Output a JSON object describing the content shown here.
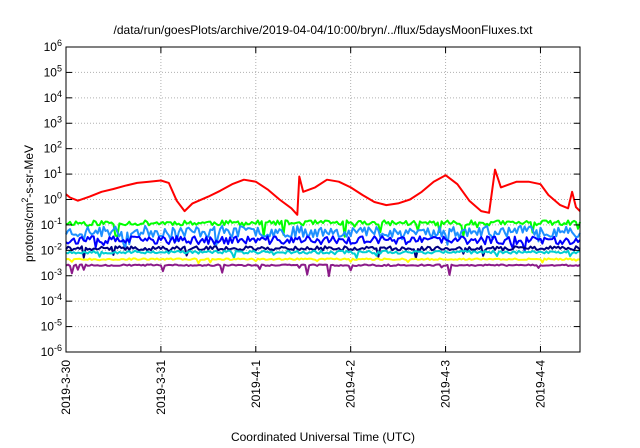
{
  "chart_data": {
    "type": "line",
    "title": "/data/run/goesPlots/archive/2019-04-04/10:00/bryn/../flux/5daysMoonFluxes.txt",
    "xlabel": "Coordinated Universal Time (UTC)",
    "ylabel": {
      "pre": "protons/cm",
      "sup": "2",
      "post": "-s-sr-MeV"
    },
    "yscale": "log",
    "ylim_exp": [
      -6,
      6
    ],
    "ytick_exponents": [
      -6,
      -5,
      -4,
      -3,
      -2,
      -1,
      0,
      1,
      2,
      3,
      4,
      5,
      6
    ],
    "xlim": [
      "2019-03-30",
      "2019-04-04T10:00"
    ],
    "xticks": [
      {
        "label": "2019-3-30",
        "t": "2019-03-30"
      },
      {
        "label": "2019-3-31",
        "t": "2019-03-31"
      },
      {
        "label": "2019-4-1",
        "t": "2019-04-01"
      },
      {
        "label": "2019-4-2",
        "t": "2019-04-02"
      },
      {
        "label": "2019-4-3",
        "t": "2019-04-03"
      },
      {
        "label": "2019-4-4",
        "t": "2019-04-04"
      }
    ],
    "grid": true,
    "series": [
      {
        "color": "#ff0000",
        "style": "smooth",
        "points": [
          [
            "2019-03-30T00:00",
            1.6
          ],
          [
            "2019-03-30T01:00",
            1.2
          ],
          [
            "2019-03-30T03:00",
            0.9
          ],
          [
            "2019-03-30T06:00",
            1.3
          ],
          [
            "2019-03-30T09:00",
            2.0
          ],
          [
            "2019-03-30T12:00",
            2.6
          ],
          [
            "2019-03-30T15:00",
            3.5
          ],
          [
            "2019-03-30T18:00",
            4.5
          ],
          [
            "2019-03-30T21:00",
            5.0
          ],
          [
            "2019-03-31T00:00",
            5.6
          ],
          [
            "2019-03-31T02:00",
            4.5
          ],
          [
            "2019-03-31T04:00",
            0.9
          ],
          [
            "2019-03-31T06:00",
            0.35
          ],
          [
            "2019-03-31T08:00",
            0.7
          ],
          [
            "2019-03-31T12:00",
            1.3
          ],
          [
            "2019-03-31T15:00",
            2.2
          ],
          [
            "2019-03-31T18:00",
            4.0
          ],
          [
            "2019-03-31T21:00",
            6.0
          ],
          [
            "2019-04-01T00:00",
            5.0
          ],
          [
            "2019-04-01T03:00",
            2.5
          ],
          [
            "2019-04-01T06:00",
            1.0
          ],
          [
            "2019-04-01T09:00",
            0.45
          ],
          [
            "2019-04-01T10:30",
            0.25
          ],
          [
            "2019-04-01T11:00",
            8.0
          ],
          [
            "2019-04-01T12:00",
            2.0
          ],
          [
            "2019-04-01T15:00",
            3.0
          ],
          [
            "2019-04-01T18:00",
            6.0
          ],
          [
            "2019-04-01T21:00",
            5.0
          ],
          [
            "2019-04-02T00:00",
            3.0
          ],
          [
            "2019-04-02T03:00",
            1.5
          ],
          [
            "2019-04-02T06:00",
            0.8
          ],
          [
            "2019-04-02T09:00",
            0.6
          ],
          [
            "2019-04-02T12:00",
            0.7
          ],
          [
            "2019-04-02T15:00",
            1.0
          ],
          [
            "2019-04-02T18:00",
            2.0
          ],
          [
            "2019-04-02T21:00",
            5.0
          ],
          [
            "2019-04-03T00:00",
            9.0
          ],
          [
            "2019-04-03T03:00",
            4.0
          ],
          [
            "2019-04-03T06:00",
            0.9
          ],
          [
            "2019-04-03T09:00",
            0.35
          ],
          [
            "2019-04-03T11:00",
            0.3
          ],
          [
            "2019-04-03T12:30",
            15.0
          ],
          [
            "2019-04-03T14:00",
            3.0
          ],
          [
            "2019-04-03T18:00",
            5.0
          ],
          [
            "2019-04-03T21:00",
            5.0
          ],
          [
            "2019-04-04T00:00",
            4.0
          ],
          [
            "2019-04-04T02:00",
            1.5
          ],
          [
            "2019-04-04T05:00",
            0.6
          ],
          [
            "2019-04-04T07:00",
            0.45
          ],
          [
            "2019-04-04T08:00",
            2.0
          ],
          [
            "2019-04-04T09:00",
            0.5
          ],
          [
            "2019-04-04T10:00",
            0.35
          ]
        ]
      },
      {
        "color": "#00ff00",
        "style": "noisy",
        "base": 0.12,
        "amp": 0.1,
        "spikes": 0.65,
        "seed": 11
      },
      {
        "color": "#1e90ff",
        "style": "noisy",
        "base": 0.055,
        "amp": 0.22,
        "spikes": 0.55,
        "seed": 23
      },
      {
        "color": "#0000ff",
        "style": "noisy",
        "base": 0.025,
        "amp": 0.16,
        "spikes": 0.45,
        "seed": 37
      },
      {
        "color": "#000080",
        "style": "noisy",
        "base": 0.012,
        "amp": 0.08,
        "spikes": 0.45,
        "seed": 41
      },
      {
        "color": "#00ced1",
        "style": "noisy",
        "base": 0.0085,
        "amp": 0.06,
        "spikes": 0.25,
        "seed": 53
      },
      {
        "color": "#ffff00",
        "style": "noisy",
        "base": 0.0045,
        "amp": 0.03,
        "spikes": 0.15,
        "seed": 67
      },
      {
        "color": "#8b1a89",
        "style": "noisy",
        "base": 0.0026,
        "amp": 0.03,
        "spikes": 0.45,
        "seed": 79
      }
    ]
  }
}
